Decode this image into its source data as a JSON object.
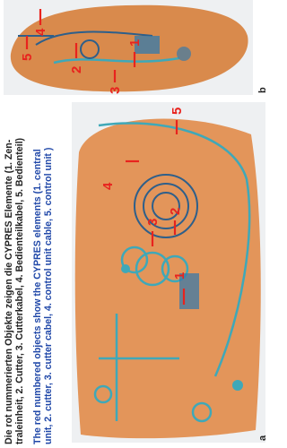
{
  "caption": {
    "german": [
      "Die rot nummerierten Objekte zeigen die CYPRES Elemente (1. Zen-",
      "traleinheit, 2. Cutter, 3. Cutterkabel, 4. Bedienteilkabel, 5. Bedienteil)"
    ],
    "english": [
      "The red numbered objects show the CYPRES elements (1. central",
      "unit, 2. cutter, 3. cutter cabel, 4. control unit cable, 5. control unit )"
    ]
  },
  "panels": [
    {
      "label": "a",
      "markers": [
        "1",
        "2",
        "3",
        "4",
        "5"
      ]
    },
    {
      "label": "b",
      "markers": [
        "1",
        "2",
        "3",
        "4",
        "5"
      ]
    }
  ]
}
